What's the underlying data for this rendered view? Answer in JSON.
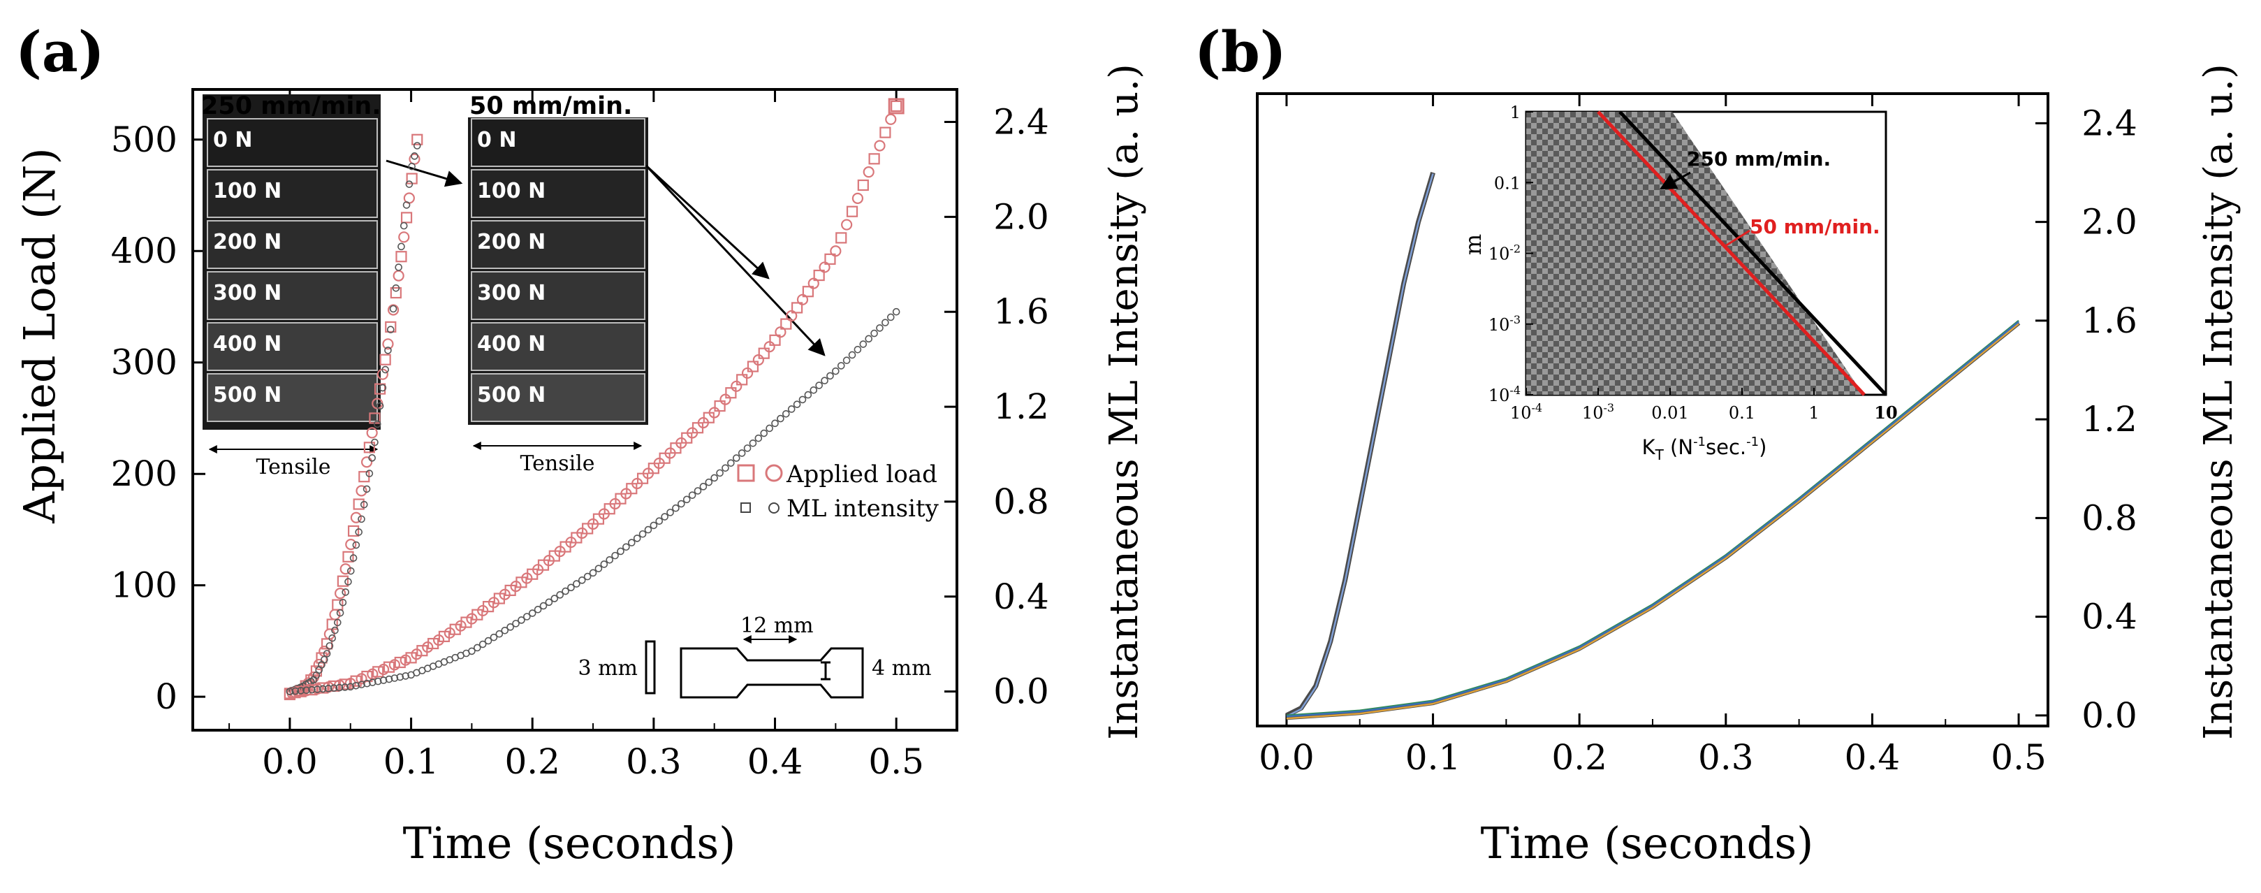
{
  "chart_data": [
    {
      "panel_label": "(a)",
      "type": "scatter",
      "xlabel": "Time (seconds)",
      "ylabel": "Applied Load (N)",
      "y2label": "Instantaneous ML Intensity (a. u.)",
      "xlim": [
        -0.08,
        0.55
      ],
      "ylim": [
        -30,
        545
      ],
      "y2lim": [
        -0.163,
        2.537
      ],
      "x_ticks": [
        "0.0",
        "0.1",
        "0.2",
        "0.3",
        "0.4",
        "0.5"
      ],
      "y_ticks": [
        "0",
        "100",
        "200",
        "300",
        "400",
        "500"
      ],
      "y2_ticks": [
        "0.0",
        "0.4",
        "0.8",
        "1.2",
        "1.6",
        "2.0",
        "2.4"
      ],
      "legend": {
        "position": "lower-right",
        "entries": [
          "Applied load",
          "ML intensity"
        ]
      },
      "series": [
        {
          "name": "Applied load",
          "axis": "left",
          "color": "#d9777a",
          "points": [
            [
              0.0,
              2
            ],
            [
              0.01,
              6
            ],
            [
              0.02,
              18
            ],
            [
              0.03,
              45
            ],
            [
              0.04,
              85
            ],
            [
              0.05,
              135
            ],
            [
              0.06,
              190
            ],
            [
              0.07,
              250
            ],
            [
              0.08,
              310
            ],
            [
              0.09,
              380
            ],
            [
              0.1,
              460
            ],
            [
              0.105,
              500
            ]
          ]
        },
        {
          "name": "ML intensity",
          "axis": "right",
          "color": "#555555",
          "points": [
            [
              0.0,
              0.0
            ],
            [
              0.01,
              0.02
            ],
            [
              0.02,
              0.05
            ],
            [
              0.03,
              0.15
            ],
            [
              0.04,
              0.3
            ],
            [
              0.05,
              0.5
            ],
            [
              0.06,
              0.75
            ],
            [
              0.07,
              1.05
            ],
            [
              0.08,
              1.4
            ],
            [
              0.09,
              1.8
            ],
            [
              0.1,
              2.2
            ],
            [
              0.105,
              2.3
            ]
          ]
        },
        {
          "name": "Applied load",
          "axis": "left",
          "color": "#d9777a",
          "points": [
            [
              0.0,
              3
            ],
            [
              0.05,
              12
            ],
            [
              0.1,
              35
            ],
            [
              0.15,
              70
            ],
            [
              0.2,
              110
            ],
            [
              0.25,
              155
            ],
            [
              0.3,
              205
            ],
            [
              0.35,
              255
            ],
            [
              0.4,
              320
            ],
            [
              0.45,
              400
            ],
            [
              0.5,
              530
            ]
          ]
        },
        {
          "name": "ML intensity",
          "axis": "right",
          "color": "#555555",
          "points": [
            [
              0.0,
              0.0
            ],
            [
              0.05,
              0.02
            ],
            [
              0.1,
              0.07
            ],
            [
              0.15,
              0.17
            ],
            [
              0.2,
              0.33
            ],
            [
              0.25,
              0.5
            ],
            [
              0.3,
              0.7
            ],
            [
              0.35,
              0.9
            ],
            [
              0.4,
              1.13
            ],
            [
              0.45,
              1.35
            ],
            [
              0.5,
              1.6
            ]
          ]
        }
      ],
      "inset_250": {
        "title": "250 mm/min.",
        "frames": [
          "0 N",
          "100 N",
          "200 N",
          "300 N",
          "400 N",
          "500 N"
        ],
        "caption": "Tensile"
      },
      "inset_50": {
        "title": "50 mm/min.",
        "frames": [
          "0 N",
          "100 N",
          "200 N",
          "300 N",
          "400 N",
          "500 N"
        ],
        "caption": "Tensile"
      },
      "specimen": {
        "length_label": "12 mm",
        "thickness_label": "3 mm",
        "width_label": "4 mm"
      }
    },
    {
      "panel_label": "(b)",
      "type": "line",
      "xlabel": "Time (seconds)",
      "ylabel": "",
      "y2label": "Instantaneous ML Intensity (a. u.)",
      "xlim": [
        -0.02,
        0.52
      ],
      "y2lim": [
        -0.043,
        2.52
      ],
      "x_ticks": [
        "0.0",
        "0.1",
        "0.2",
        "0.3",
        "0.4",
        "0.5"
      ],
      "y2_ticks": [
        "0.0",
        "0.4",
        "0.8",
        "1.2",
        "1.6",
        "2.0",
        "2.4"
      ],
      "series": [
        {
          "name": "",
          "color": "#4a4a4a",
          "points": [
            [
              0.0,
              0.0
            ],
            [
              0.01,
              0.03
            ],
            [
              0.02,
              0.12
            ],
            [
              0.03,
              0.3
            ],
            [
              0.04,
              0.55
            ],
            [
              0.05,
              0.85
            ],
            [
              0.06,
              1.15
            ],
            [
              0.07,
              1.45
            ],
            [
              0.08,
              1.75
            ],
            [
              0.09,
              2.0
            ],
            [
              0.1,
              2.2
            ]
          ]
        },
        {
          "name": "",
          "color": "#7f9fd6",
          "points": [
            [
              0.0,
              0.0
            ],
            [
              0.01,
              0.03
            ],
            [
              0.02,
              0.12
            ],
            [
              0.03,
              0.3
            ],
            [
              0.04,
              0.55
            ],
            [
              0.05,
              0.85
            ],
            [
              0.06,
              1.15
            ],
            [
              0.07,
              1.45
            ],
            [
              0.08,
              1.75
            ],
            [
              0.09,
              2.0
            ],
            [
              0.1,
              2.2
            ]
          ]
        },
        {
          "name": "",
          "color": "#4a4a4a",
          "points": [
            [
              0.0,
              0.0
            ],
            [
              0.05,
              0.02
            ],
            [
              0.1,
              0.06
            ],
            [
              0.15,
              0.15
            ],
            [
              0.2,
              0.28
            ],
            [
              0.25,
              0.45
            ],
            [
              0.3,
              0.65
            ],
            [
              0.35,
              0.88
            ],
            [
              0.4,
              1.12
            ],
            [
              0.45,
              1.36
            ],
            [
              0.5,
              1.6
            ]
          ]
        },
        {
          "name": "",
          "color": "#e0a23a",
          "points": [
            [
              0.0,
              0.0
            ],
            [
              0.05,
              0.02
            ],
            [
              0.1,
              0.06
            ],
            [
              0.15,
              0.15
            ],
            [
              0.2,
              0.28
            ],
            [
              0.25,
              0.45
            ],
            [
              0.3,
              0.65
            ],
            [
              0.35,
              0.88
            ],
            [
              0.4,
              1.12
            ],
            [
              0.45,
              1.36
            ],
            [
              0.5,
              1.6
            ]
          ]
        },
        {
          "name": "",
          "color": "#2e8b57",
          "points": [
            [
              0.0,
              0.0
            ],
            [
              0.05,
              0.02
            ],
            [
              0.1,
              0.06
            ],
            [
              0.15,
              0.15
            ],
            [
              0.2,
              0.28
            ],
            [
              0.25,
              0.45
            ],
            [
              0.3,
              0.65
            ],
            [
              0.35,
              0.88
            ],
            [
              0.4,
              1.12
            ],
            [
              0.45,
              1.36
            ],
            [
              0.5,
              1.6
            ]
          ]
        },
        {
          "name": "",
          "color": "#3b6fb6",
          "points": [
            [
              0.0,
              0.0
            ],
            [
              0.05,
              0.02
            ],
            [
              0.1,
              0.06
            ],
            [
              0.15,
              0.15
            ],
            [
              0.2,
              0.28
            ],
            [
              0.25,
              0.45
            ],
            [
              0.3,
              0.65
            ],
            [
              0.35,
              0.88
            ],
            [
              0.4,
              1.12
            ],
            [
              0.45,
              1.36
            ],
            [
              0.5,
              1.6
            ]
          ]
        }
      ],
      "inset": {
        "type": "line",
        "xlabel": "K",
        "xlabel_sub": "T",
        "xlabel_unit_pre": " (N",
        "xlabel_unit_sup1": "-1",
        "xlabel_unit_mid": "sec.",
        "xlabel_unit_sup2": "-1",
        "xlabel_unit_post": ")",
        "ylabel": "m",
        "scale": "log-log",
        "x_ticks": [
          {
            "value": 0.0001,
            "base": "10",
            "sup": "-4"
          },
          {
            "value": 0.001,
            "base": "10",
            "sup": "-3"
          },
          {
            "value": 0.01,
            "label": "0.01"
          },
          {
            "value": 0.1,
            "label": "0.1"
          },
          {
            "value": 1,
            "label": "1"
          },
          {
            "value": 10,
            "label": "10"
          }
        ],
        "y_ticks": [
          {
            "value": 1,
            "label": "1"
          },
          {
            "value": 0.1,
            "label": "0.1"
          },
          {
            "value": 0.01,
            "base": "10",
            "sup": "-2"
          },
          {
            "value": 0.001,
            "base": "10",
            "sup": "-3"
          },
          {
            "value": 0.0001,
            "base": "10",
            "sup": "-4"
          }
        ],
        "series": [
          {
            "name": "250 mm/min.",
            "color": "#000000",
            "points": [
              [
                0.002,
                1
              ],
              [
                10,
                0.0001
              ]
            ]
          },
          {
            "name": "50 mm/min.",
            "color": "#e02020",
            "points": [
              [
                0.001,
                1
              ],
              [
                5,
                0.0001
              ]
            ]
          }
        ]
      }
    }
  ]
}
